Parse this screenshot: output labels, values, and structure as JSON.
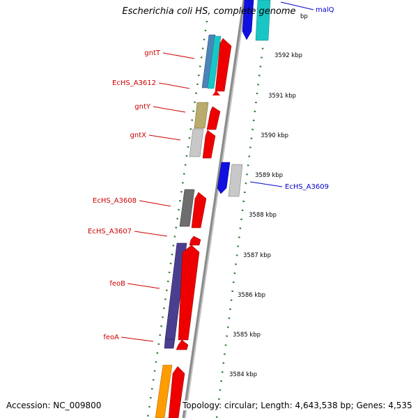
{
  "title": "Escherichia coli HS, complete genome",
  "footer": {
    "accession": "Accession: NC_009800",
    "summary": "Topology: circular; Length: 4,643,538 bp; Genes: 4,535"
  },
  "colors": {
    "forward_label": "#cc0000",
    "reverse_label": "#0000cc",
    "backbone": "#8c8c8c",
    "tick": "#2a7a2a"
  },
  "ticks": [
    {
      "label": "3592 kbp"
    },
    {
      "label": "3591 kbp"
    },
    {
      "label": "3590 kbp"
    },
    {
      "label": "3589 kbp"
    },
    {
      "label": "3588 kbp"
    },
    {
      "label": "3587 kbp"
    },
    {
      "label": "3586 kbp"
    },
    {
      "label": "3585 kbp"
    },
    {
      "label": "3584 kbp"
    },
    {
      "label": "bp"
    }
  ],
  "gene_labels": [
    {
      "name": "gntT",
      "strand": "forward"
    },
    {
      "name": "EcHS_A3612",
      "strand": "forward"
    },
    {
      "name": "gntY",
      "strand": "forward"
    },
    {
      "name": "gntX",
      "strand": "forward"
    },
    {
      "name": "EcHS_A3608",
      "strand": "forward"
    },
    {
      "name": "EcHS_A3607",
      "strand": "forward"
    },
    {
      "name": "feoB",
      "strand": "forward"
    },
    {
      "name": "feoA",
      "strand": "forward"
    },
    {
      "name": "EcHS_A3609",
      "strand": "reverse"
    },
    {
      "name": "malQ",
      "strand": "reverse"
    }
  ]
}
